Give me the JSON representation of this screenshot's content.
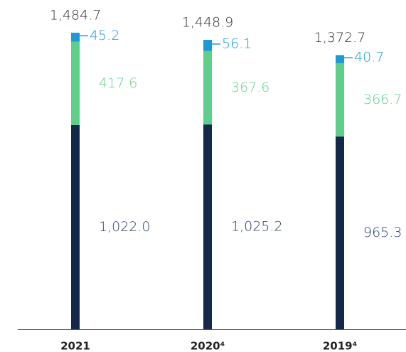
{
  "chart_data": {
    "type": "stacked_bar",
    "categories": [
      "2021",
      "2020⁴",
      "2019⁴"
    ],
    "series": [
      {
        "color": "#14284b",
        "label_color": "#2a3d6e",
        "values": [
          1022.0,
          1025.2,
          965.3
        ],
        "value_labels": [
          "1,022.0",
          "1,025.2",
          "965.3"
        ]
      },
      {
        "color": "#5ecf8a",
        "label_color": "#5ecf8a",
        "values": [
          417.6,
          367.6,
          366.7
        ]
      },
      {
        "color": "#1b9ad6",
        "label_color": "#1b9ad6",
        "values": [
          45.2,
          56.1,
          40.7
        ]
      }
    ],
    "totals": {
      "values": [
        1484.7,
        1448.9,
        1372.7
      ],
      "value_labels": [
        "1,484.7",
        "1,448.9",
        "1,372.7"
      ]
    }
  }
}
